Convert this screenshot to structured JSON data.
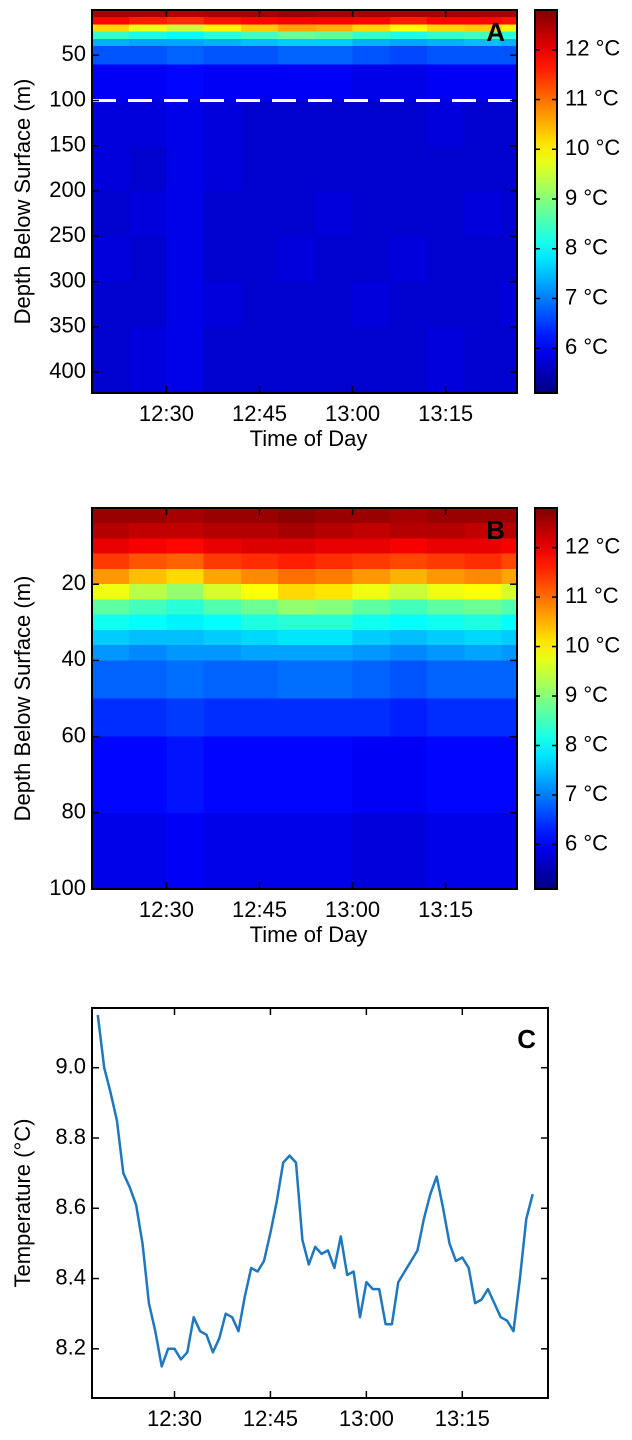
{
  "chart_data": [
    {
      "type": "heatmap",
      "panel_label": "A",
      "xlabel": "Time of Day",
      "ylabel": "Depth Below Surface (m)",
      "xlim": [
        738,
        806.5
      ],
      "ylim": [
        0,
        423
      ],
      "y_reversed": true,
      "xticks": [
        {
          "value": 750,
          "label": "12:30"
        },
        {
          "value": 765,
          "label": "12:45"
        },
        {
          "value": 780,
          "label": "13:00"
        },
        {
          "value": 795,
          "label": "13:15"
        }
      ],
      "yticks": [
        50,
        100,
        150,
        200,
        250,
        300,
        350,
        400
      ],
      "hline": 100,
      "colormap": "jet",
      "xbins": [
        738,
        744,
        750,
        756,
        762,
        768,
        774,
        780,
        786,
        792,
        798,
        804,
        806.5
      ],
      "ybins": [
        0,
        8,
        16,
        24,
        32,
        40,
        60,
        100,
        150,
        200,
        250,
        300,
        350,
        423
      ],
      "z": [
        [
          12.5,
          12.5,
          12.4,
          12.5,
          12.5,
          12.6,
          12.5,
          12.5,
          12.5,
          12.5,
          12.5,
          12.5
        ],
        [
          11.8,
          11.6,
          11.5,
          11.7,
          11.8,
          11.9,
          11.9,
          11.8,
          11.6,
          11.8,
          11.8,
          11.7
        ],
        [
          10.2,
          9.8,
          9.5,
          10.0,
          10.3,
          10.6,
          10.5,
          10.2,
          9.9,
          10.2,
          10.3,
          10.0
        ],
        [
          8.4,
          8.2,
          8.0,
          8.3,
          8.5,
          8.8,
          8.7,
          8.4,
          8.2,
          8.4,
          8.5,
          8.3
        ],
        [
          7.4,
          7.3,
          7.3,
          7.4,
          7.5,
          7.6,
          7.6,
          7.4,
          7.3,
          7.4,
          7.5,
          7.4
        ],
        [
          6.7,
          6.7,
          6.8,
          6.7,
          6.7,
          6.8,
          6.8,
          6.7,
          6.6,
          6.7,
          6.7,
          6.7
        ],
        [
          6.0,
          6.0,
          6.1,
          6.0,
          6.0,
          6.0,
          6.0,
          5.9,
          5.9,
          6.0,
          6.0,
          6.0
        ],
        [
          5.8,
          5.8,
          5.9,
          5.8,
          5.7,
          5.7,
          5.7,
          5.7,
          5.7,
          5.8,
          5.7,
          5.7
        ],
        [
          5.8,
          5.7,
          5.9,
          5.8,
          5.7,
          5.7,
          5.7,
          5.7,
          5.7,
          5.7,
          5.7,
          5.7
        ],
        [
          5.7,
          5.8,
          5.9,
          5.7,
          5.7,
          5.7,
          5.8,
          5.7,
          5.7,
          5.7,
          5.8,
          5.7
        ],
        [
          5.8,
          5.7,
          5.9,
          5.7,
          5.7,
          5.8,
          5.7,
          5.7,
          5.8,
          5.7,
          5.7,
          5.7
        ],
        [
          5.7,
          5.7,
          5.9,
          5.8,
          5.7,
          5.7,
          5.7,
          5.8,
          5.7,
          5.7,
          5.7,
          5.8
        ],
        [
          5.7,
          5.8,
          5.9,
          5.7,
          5.7,
          5.7,
          5.7,
          5.7,
          5.7,
          5.8,
          5.7,
          5.7
        ]
      ],
      "colorbar": {
        "clim": [
          5.1,
          12.8
        ],
        "ticks": [
          {
            "value": 6,
            "label": "6 °C"
          },
          {
            "value": 7,
            "label": "7 °C"
          },
          {
            "value": 8,
            "label": "8 °C"
          },
          {
            "value": 9,
            "label": "9 °C"
          },
          {
            "value": 10,
            "label": "10 °C"
          },
          {
            "value": 11,
            "label": "11 °C"
          },
          {
            "value": 12,
            "label": "12 °C"
          }
        ]
      }
    },
    {
      "type": "heatmap",
      "panel_label": "B",
      "xlabel": "Time of Day",
      "ylabel": "Depth Below Surface (m)",
      "xlim": [
        738,
        806.5
      ],
      "ylim": [
        0,
        100
      ],
      "y_reversed": true,
      "xticks": [
        {
          "value": 750,
          "label": "12:30"
        },
        {
          "value": 765,
          "label": "12:45"
        },
        {
          "value": 780,
          "label": "13:00"
        },
        {
          "value": 795,
          "label": "13:15"
        }
      ],
      "yticks": [
        20,
        40,
        60,
        80,
        100
      ],
      "colormap": "jet",
      "xbins": [
        738,
        744,
        750,
        756,
        762,
        768,
        774,
        780,
        786,
        792,
        798,
        804,
        806.5
      ],
      "ybins": [
        0,
        4,
        8,
        12,
        16,
        20,
        24,
        28,
        32,
        36,
        40,
        50,
        60,
        80,
        100
      ],
      "z": [
        [
          12.6,
          12.6,
          12.5,
          12.6,
          12.6,
          12.7,
          12.6,
          12.6,
          12.5,
          12.6,
          12.6,
          12.6
        ],
        [
          12.4,
          12.3,
          12.3,
          12.4,
          12.4,
          12.5,
          12.4,
          12.3,
          12.4,
          12.4,
          12.3,
          12.4
        ],
        [
          12.0,
          11.9,
          11.8,
          12.0,
          12.1,
          12.1,
          12.0,
          12.0,
          11.9,
          12.0,
          12.0,
          11.9
        ],
        [
          11.4,
          11.2,
          11.1,
          11.4,
          11.5,
          11.6,
          11.5,
          11.4,
          11.3,
          11.4,
          11.5,
          11.3
        ],
        [
          10.7,
          10.4,
          10.2,
          10.6,
          10.8,
          11.0,
          10.9,
          10.7,
          10.5,
          10.7,
          10.8,
          10.6
        ],
        [
          9.8,
          9.4,
          9.1,
          9.6,
          9.9,
          10.2,
          10.1,
          9.8,
          9.5,
          9.8,
          9.9,
          9.6
        ],
        [
          8.7,
          8.5,
          8.3,
          8.6,
          8.8,
          9.1,
          9.0,
          8.7,
          8.5,
          8.7,
          8.8,
          8.6
        ],
        [
          8.1,
          8.0,
          7.9,
          8.0,
          8.2,
          8.3,
          8.3,
          8.1,
          8.0,
          8.1,
          8.2,
          8.0
        ],
        [
          7.6,
          7.5,
          7.5,
          7.6,
          7.7,
          7.8,
          7.8,
          7.6,
          7.5,
          7.6,
          7.7,
          7.6
        ],
        [
          7.2,
          7.1,
          7.2,
          7.2,
          7.3,
          7.3,
          7.3,
          7.2,
          7.1,
          7.2,
          7.3,
          7.2
        ],
        [
          6.8,
          6.8,
          6.9,
          6.8,
          6.8,
          6.9,
          6.9,
          6.8,
          6.7,
          6.8,
          6.8,
          6.8
        ],
        [
          6.4,
          6.4,
          6.5,
          6.4,
          6.4,
          6.4,
          6.4,
          6.4,
          6.3,
          6.4,
          6.4,
          6.4
        ],
        [
          6.1,
          6.1,
          6.2,
          6.1,
          6.1,
          6.1,
          6.1,
          6.0,
          6.0,
          6.1,
          6.1,
          6.1
        ],
        [
          5.9,
          5.9,
          6.0,
          5.9,
          5.9,
          5.9,
          5.9,
          5.8,
          5.8,
          5.9,
          5.9,
          5.9
        ]
      ],
      "colorbar": {
        "clim": [
          5.1,
          12.8
        ],
        "ticks": [
          {
            "value": 6,
            "label": "6 °C"
          },
          {
            "value": 7,
            "label": "7 °C"
          },
          {
            "value": 8,
            "label": "8 °C"
          },
          {
            "value": 9,
            "label": "9 °C"
          },
          {
            "value": 10,
            "label": "10 °C"
          },
          {
            "value": 11,
            "label": "11 °C"
          },
          {
            "value": 12,
            "label": "12 °C"
          }
        ]
      }
    },
    {
      "type": "line",
      "panel_label": "C",
      "xlabel": "Time of Day",
      "ylabel": "Temperature (°C)",
      "xlim": [
        737.1,
        808.4
      ],
      "ylim": [
        8.06,
        9.17
      ],
      "color": "#1f77bd",
      "xticks": [
        {
          "value": 750,
          "label": "12:30"
        },
        {
          "value": 765,
          "label": "12:45"
        },
        {
          "value": 780,
          "label": "13:00"
        },
        {
          "value": 795,
          "label": "13:15"
        }
      ],
      "yticks": [
        8.2,
        8.4,
        8.6,
        8.8,
        {
          "value": 9,
          "label": "9.0"
        }
      ],
      "x": [
        738,
        739,
        740,
        741,
        742,
        743,
        744,
        745,
        746,
        747,
        748,
        749,
        750,
        751,
        752,
        753,
        754,
        755,
        756,
        757,
        758,
        759,
        760,
        761,
        762,
        763,
        764,
        765,
        766,
        767,
        768,
        769,
        770,
        771,
        772,
        773,
        774,
        775,
        776,
        777,
        778,
        779,
        780,
        781,
        782,
        783,
        784,
        785,
        786,
        787,
        788,
        789,
        790,
        791,
        792,
        793,
        794,
        795,
        796,
        797,
        798,
        799,
        800,
        801,
        802,
        803,
        804,
        805,
        806
      ],
      "values": [
        9.15,
        9.0,
        8.93,
        8.85,
        8.7,
        8.66,
        8.61,
        8.5,
        8.33,
        8.25,
        8.15,
        8.2,
        8.2,
        8.17,
        8.19,
        8.29,
        8.25,
        8.24,
        8.19,
        8.23,
        8.3,
        8.29,
        8.25,
        8.35,
        8.43,
        8.42,
        8.45,
        8.53,
        8.62,
        8.73,
        8.75,
        8.73,
        8.51,
        8.44,
        8.49,
        8.47,
        8.48,
        8.43,
        8.52,
        8.41,
        8.42,
        8.29,
        8.39,
        8.37,
        8.37,
        8.27,
        8.27,
        8.39,
        8.42,
        8.45,
        8.48,
        8.57,
        8.64,
        8.69,
        8.6,
        8.5,
        8.45,
        8.46,
        8.43,
        8.33,
        8.34,
        8.37,
        8.33,
        8.29,
        8.28,
        8.25,
        8.4,
        8.57,
        8.64
      ]
    }
  ]
}
